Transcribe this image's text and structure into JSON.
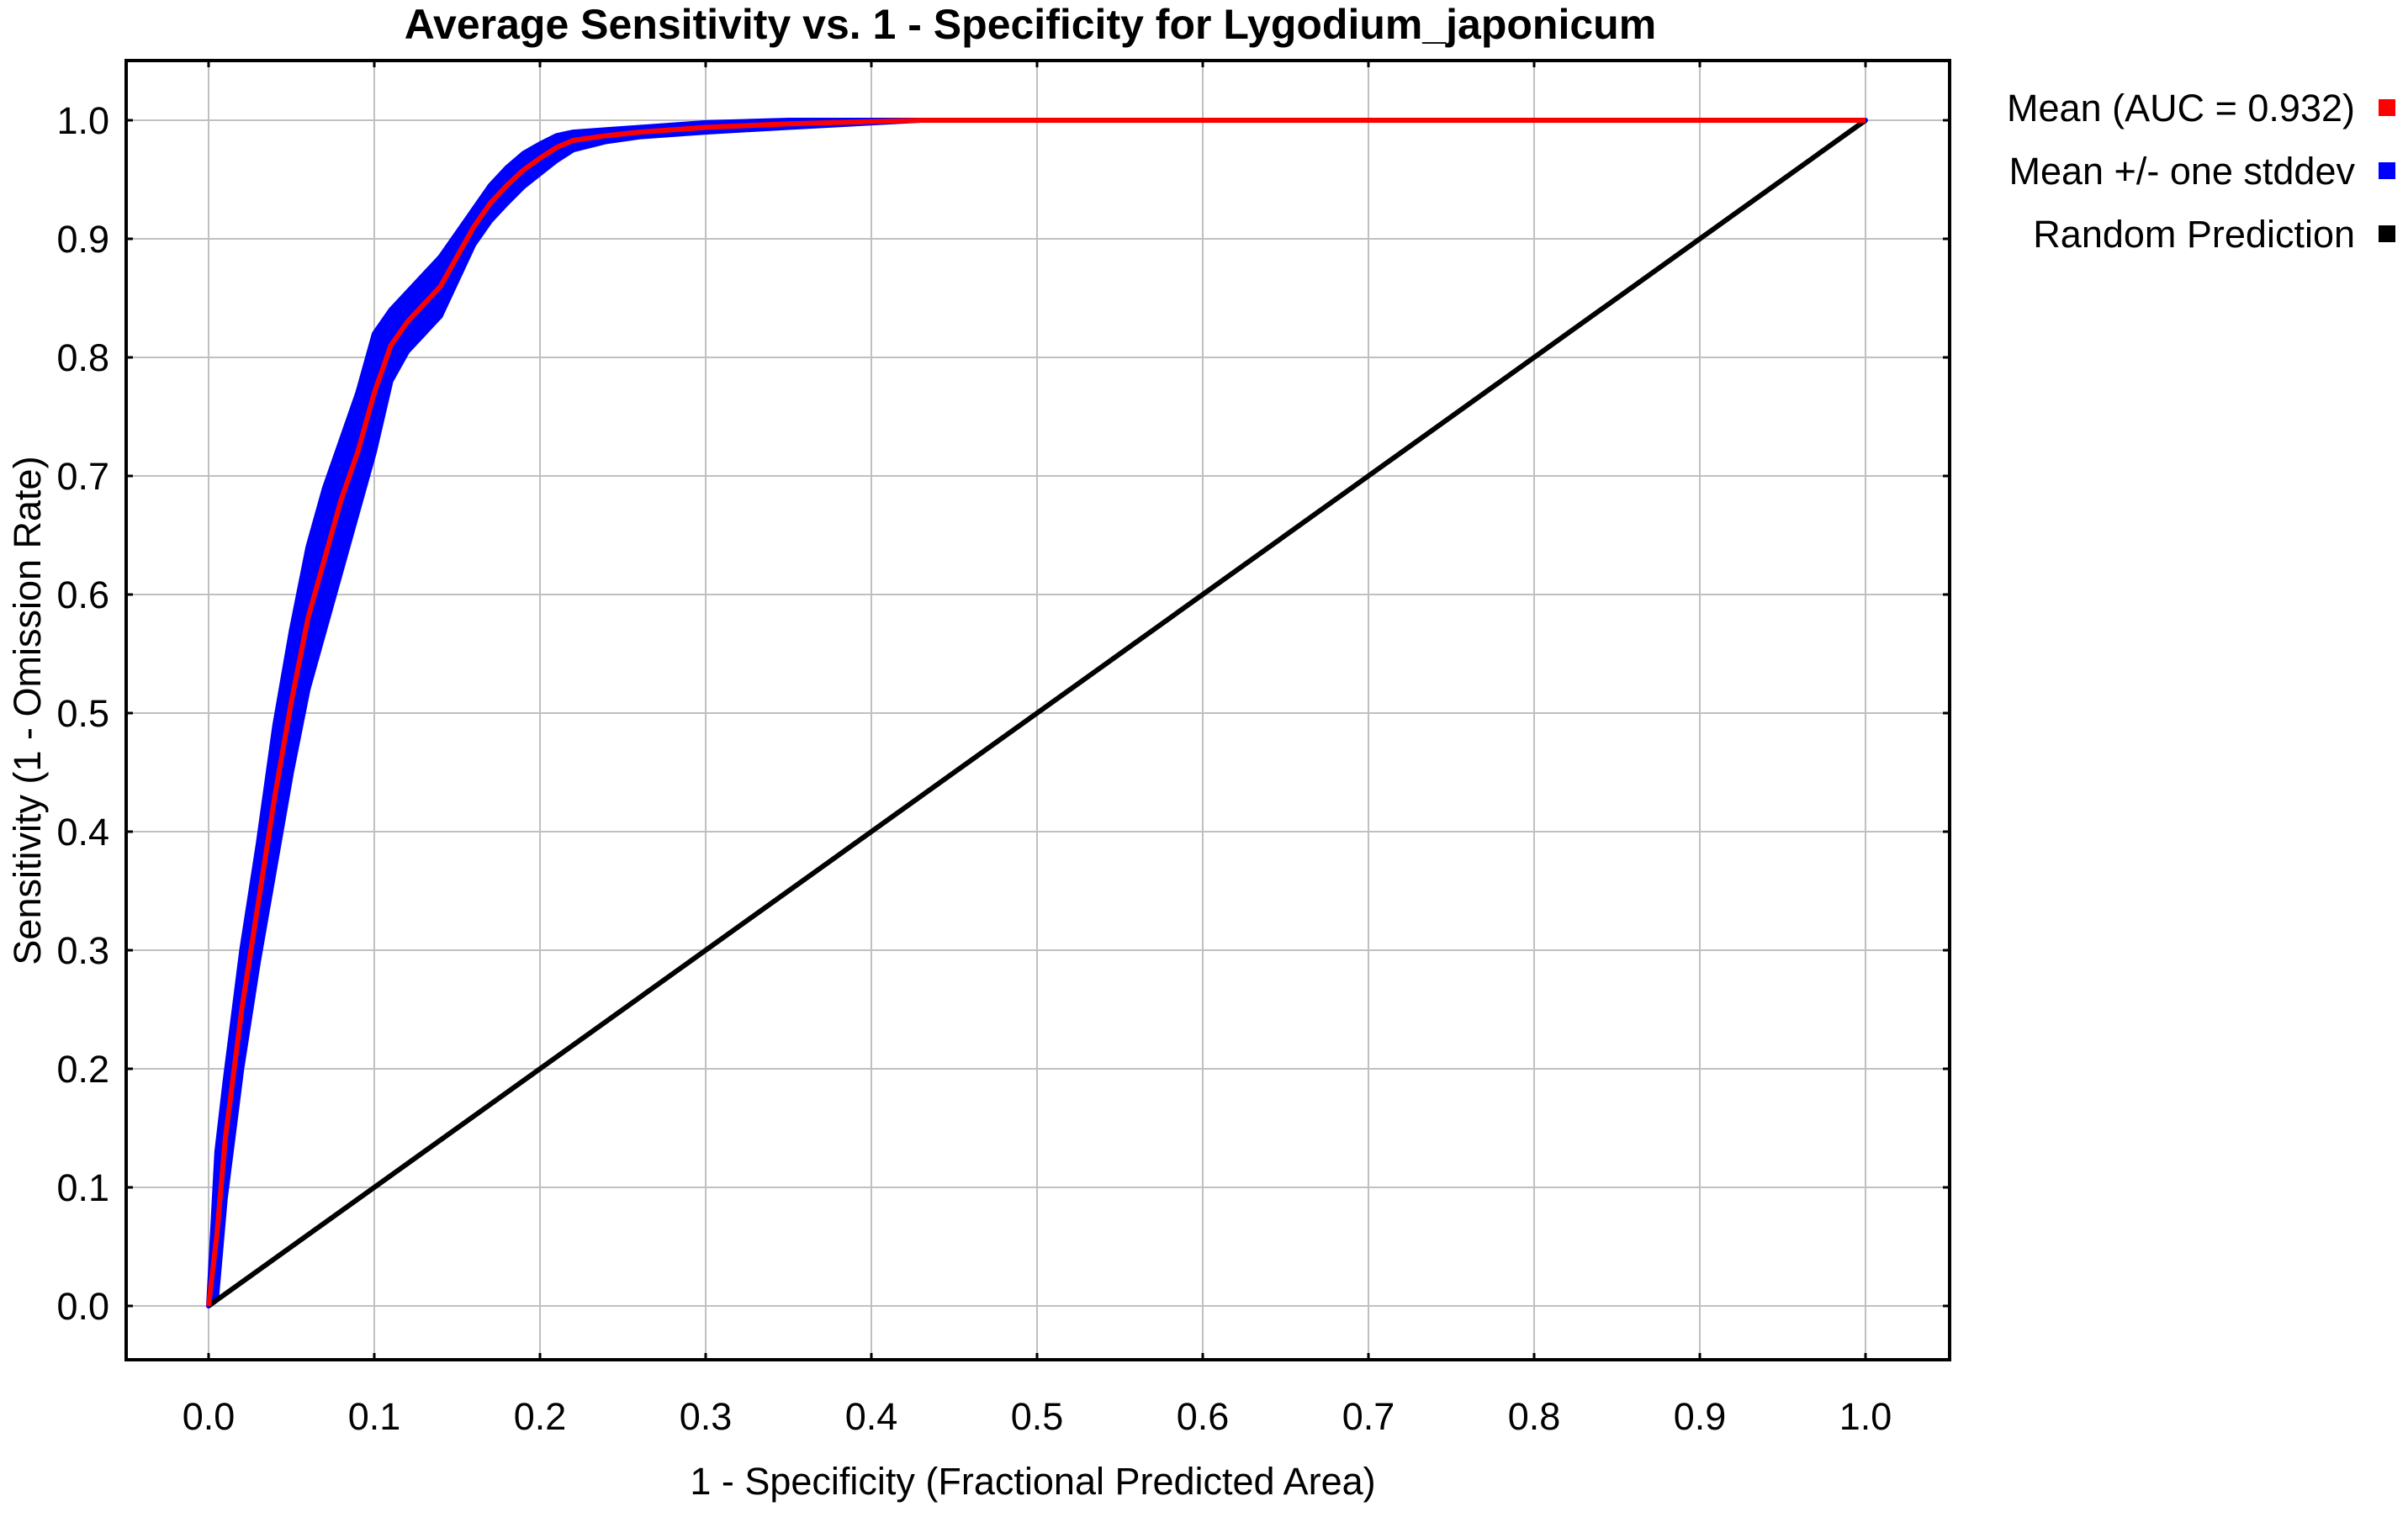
{
  "chart_data": {
    "type": "line",
    "title": "Average Sensitivity vs. 1 - Specificity for Lygodium_japonicum",
    "xlabel": "1 - Specificity (Fractional Predicted Area)",
    "ylabel": "Sensitivity (1 - Omission Rate)",
    "xlim": [
      0.0,
      1.0
    ],
    "ylim": [
      0.0,
      1.0
    ],
    "x_ticks": [
      "0.0",
      "0.1",
      "0.2",
      "0.3",
      "0.4",
      "0.5",
      "0.6",
      "0.7",
      "0.8",
      "0.9",
      "1.0"
    ],
    "y_ticks": [
      "0.0",
      "0.1",
      "0.2",
      "0.3",
      "0.4",
      "0.5",
      "0.6",
      "0.7",
      "0.8",
      "0.9",
      "1.0"
    ],
    "grid": true,
    "legend_position": "right",
    "series": [
      {
        "name": "Mean (AUC = 0.932)",
        "color": "#ff0000",
        "x": [
          0.0,
          0.005,
          0.01,
          0.02,
          0.03,
          0.04,
          0.05,
          0.06,
          0.07,
          0.08,
          0.09,
          0.1,
          0.11,
          0.12,
          0.13,
          0.14,
          0.15,
          0.16,
          0.17,
          0.18,
          0.19,
          0.2,
          0.21,
          0.22,
          0.24,
          0.26,
          0.3,
          0.35,
          0.43,
          1.0
        ],
        "y": [
          0.0,
          0.06,
          0.14,
          0.25,
          0.34,
          0.43,
          0.51,
          0.58,
          0.63,
          0.68,
          0.72,
          0.77,
          0.81,
          0.83,
          0.845,
          0.86,
          0.885,
          0.91,
          0.93,
          0.945,
          0.958,
          0.968,
          0.977,
          0.983,
          0.987,
          0.99,
          0.994,
          0.997,
          1.0,
          1.0
        ]
      },
      {
        "name": "Mean +/- one stddev",
        "color": "#0000ff",
        "x": [
          0.0,
          0.005,
          0.01,
          0.02,
          0.03,
          0.04,
          0.05,
          0.06,
          0.07,
          0.08,
          0.09,
          0.1,
          0.11,
          0.12,
          0.13,
          0.14,
          0.15,
          0.16,
          0.17,
          0.18,
          0.19,
          0.2,
          0.21,
          0.22,
          0.24,
          0.26,
          0.3,
          0.35,
          0.43,
          1.0
        ],
        "upper": [
          0.0,
          0.13,
          0.19,
          0.3,
          0.39,
          0.49,
          0.57,
          0.64,
          0.69,
          0.73,
          0.77,
          0.82,
          0.84,
          0.855,
          0.87,
          0.885,
          0.905,
          0.925,
          0.945,
          0.96,
          0.972,
          0.98,
          0.987,
          0.99,
          0.992,
          0.994,
          0.998,
          1.0,
          1.0,
          1.0
        ],
        "lower": [
          0.0,
          0.01,
          0.09,
          0.2,
          0.29,
          0.37,
          0.45,
          0.52,
          0.57,
          0.62,
          0.67,
          0.72,
          0.78,
          0.805,
          0.82,
          0.835,
          0.865,
          0.895,
          0.915,
          0.93,
          0.944,
          0.955,
          0.966,
          0.975,
          0.982,
          0.986,
          0.99,
          0.994,
          1.0,
          1.0
        ]
      },
      {
        "name": "Random Prediction",
        "color": "#000000",
        "x": [
          0.0,
          1.0
        ],
        "y": [
          0.0,
          1.0
        ]
      }
    ]
  }
}
